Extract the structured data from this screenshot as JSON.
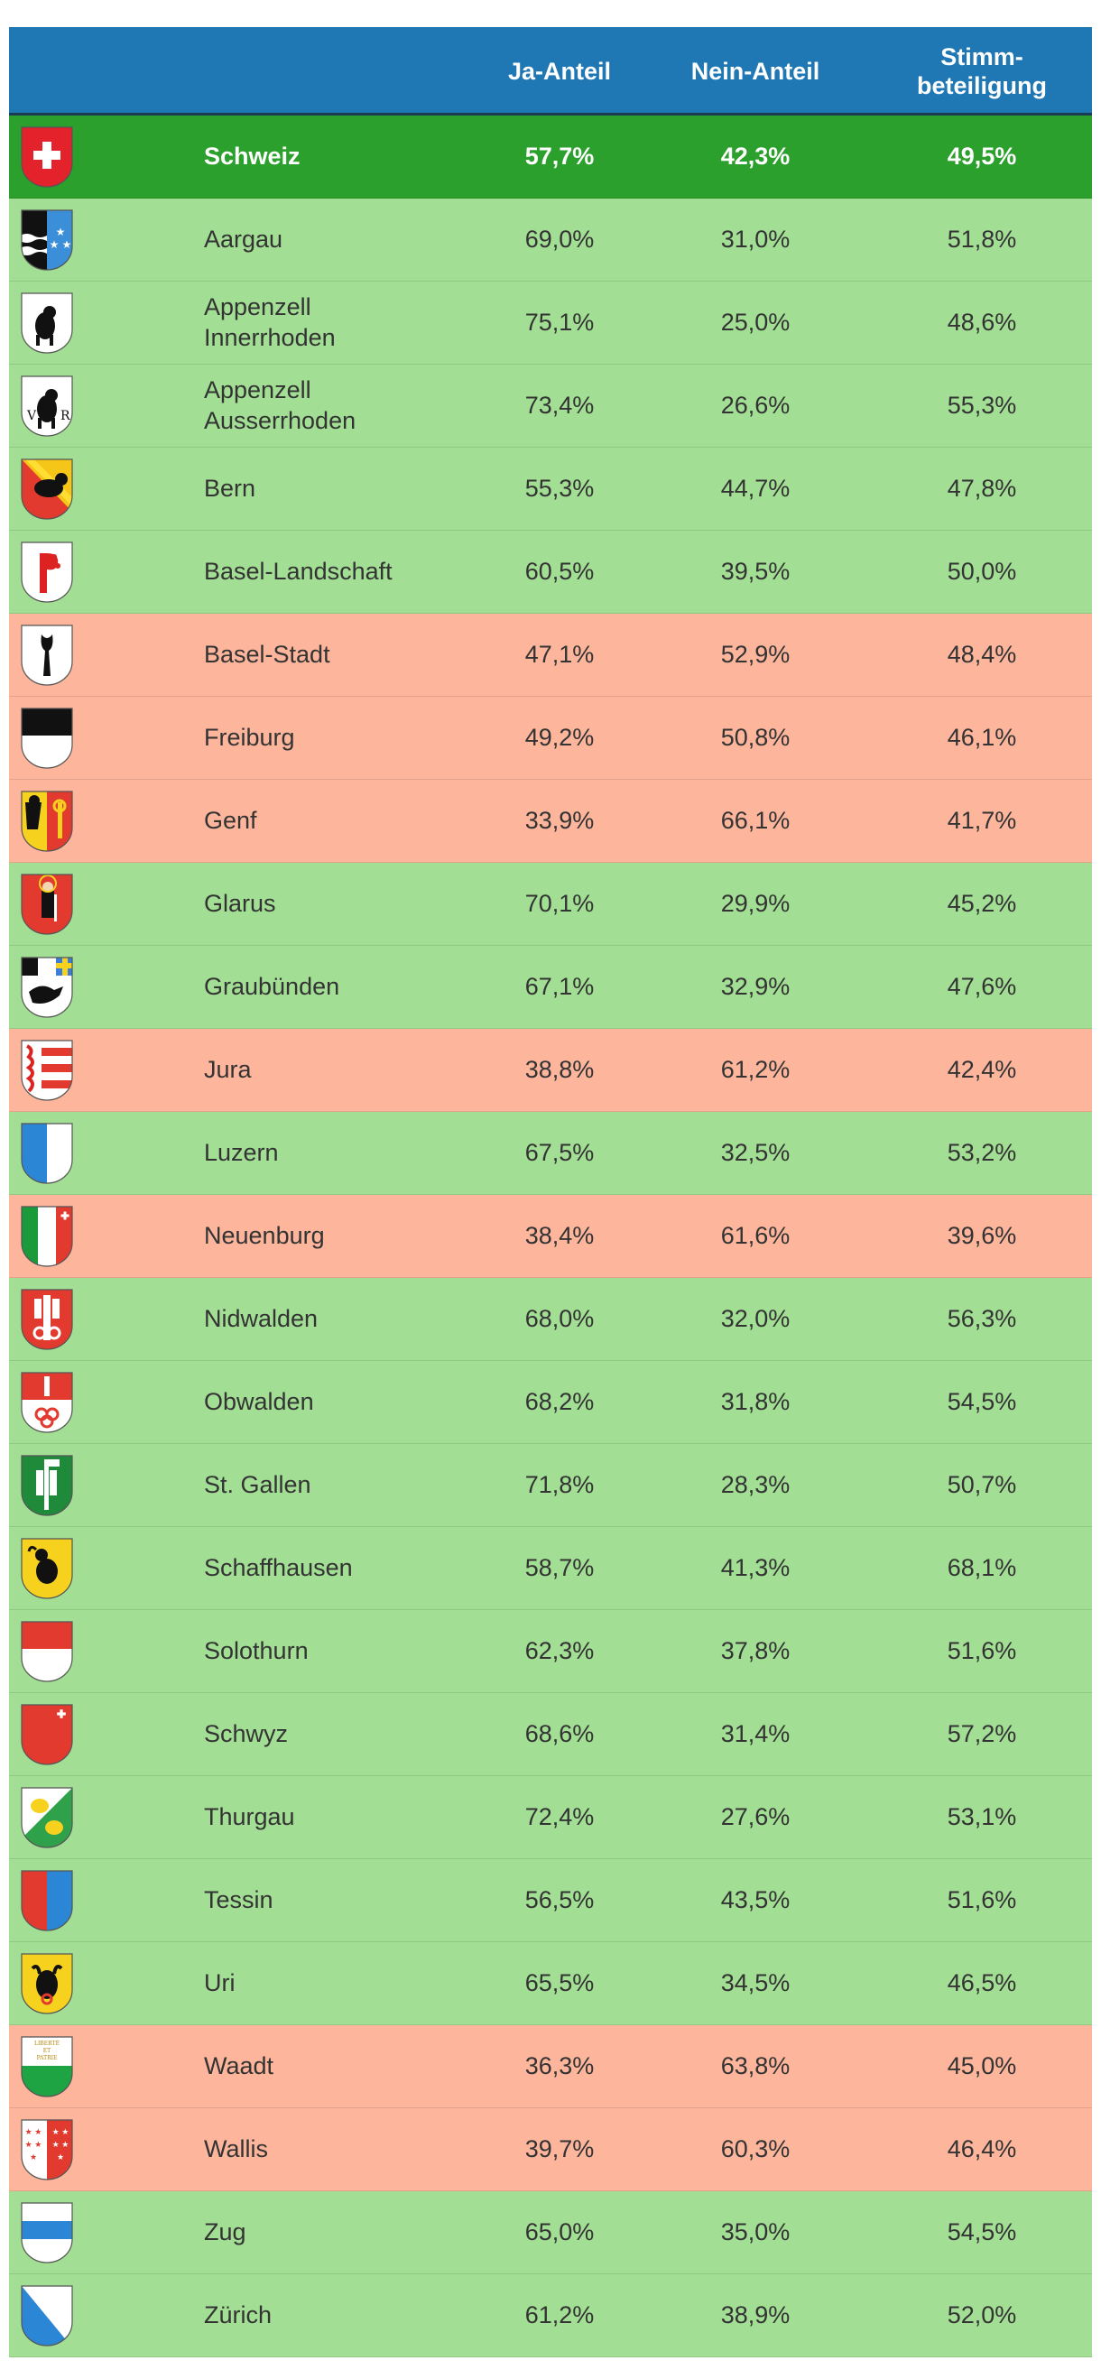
{
  "header": {
    "ja": "Ja-Anteil",
    "nein": "Nein-Anteil",
    "stimm": "Stimm-\nbeteiligung"
  },
  "colors": {
    "header": "#1f77b4",
    "total": "#2ca02c",
    "yes": "#a2df94",
    "no": "#fdb59c"
  },
  "rows": [
    {
      "name": "Schweiz",
      "ja": "57,7%",
      "nein": "42,3%",
      "stimm": "49,5%",
      "result": "total",
      "icon": "swiss-cross-icon"
    },
    {
      "name": "Aargau",
      "ja": "69,0%",
      "nein": "31,0%",
      "stimm": "51,8%",
      "result": "yes",
      "icon": "aargau-coat-of-arms-icon"
    },
    {
      "name": "Appenzell\nInnerrhoden",
      "ja": "75,1%",
      "nein": "25,0%",
      "stimm": "48,6%",
      "result": "yes",
      "icon": "appenzell-innerrhoden-coat-of-arms-icon"
    },
    {
      "name": "Appenzell\nAusserrhoden",
      "ja": "73,4%",
      "nein": "26,6%",
      "stimm": "55,3%",
      "result": "yes",
      "icon": "appenzell-ausserrhoden-coat-of-arms-icon"
    },
    {
      "name": "Bern",
      "ja": "55,3%",
      "nein": "44,7%",
      "stimm": "47,8%",
      "result": "yes",
      "icon": "bern-coat-of-arms-icon"
    },
    {
      "name": "Basel-Landschaft",
      "ja": "60,5%",
      "nein": "39,5%",
      "stimm": "50,0%",
      "result": "yes",
      "icon": "basel-landschaft-coat-of-arms-icon"
    },
    {
      "name": "Basel-Stadt",
      "ja": "47,1%",
      "nein": "52,9%",
      "stimm": "48,4%",
      "result": "no",
      "icon": "basel-stadt-coat-of-arms-icon"
    },
    {
      "name": "Freiburg",
      "ja": "49,2%",
      "nein": "50,8%",
      "stimm": "46,1%",
      "result": "no",
      "icon": "freiburg-coat-of-arms-icon"
    },
    {
      "name": "Genf",
      "ja": "33,9%",
      "nein": "66,1%",
      "stimm": "41,7%",
      "result": "no",
      "icon": "genf-coat-of-arms-icon"
    },
    {
      "name": "Glarus",
      "ja": "70,1%",
      "nein": "29,9%",
      "stimm": "45,2%",
      "result": "yes",
      "icon": "glarus-coat-of-arms-icon"
    },
    {
      "name": "Graubünden",
      "ja": "67,1%",
      "nein": "32,9%",
      "stimm": "47,6%",
      "result": "yes",
      "icon": "graubuenden-coat-of-arms-icon"
    },
    {
      "name": "Jura",
      "ja": "38,8%",
      "nein": "61,2%",
      "stimm": "42,4%",
      "result": "no",
      "icon": "jura-coat-of-arms-icon"
    },
    {
      "name": "Luzern",
      "ja": "67,5%",
      "nein": "32,5%",
      "stimm": "53,2%",
      "result": "yes",
      "icon": "luzern-coat-of-arms-icon"
    },
    {
      "name": "Neuenburg",
      "ja": "38,4%",
      "nein": "61,6%",
      "stimm": "39,6%",
      "result": "no",
      "icon": "neuenburg-coat-of-arms-icon"
    },
    {
      "name": "Nidwalden",
      "ja": "68,0%",
      "nein": "32,0%",
      "stimm": "56,3%",
      "result": "yes",
      "icon": "nidwalden-coat-of-arms-icon"
    },
    {
      "name": "Obwalden",
      "ja": "68,2%",
      "nein": "31,8%",
      "stimm": "54,5%",
      "result": "yes",
      "icon": "obwalden-coat-of-arms-icon"
    },
    {
      "name": "St. Gallen",
      "ja": "71,8%",
      "nein": "28,3%",
      "stimm": "50,7%",
      "result": "yes",
      "icon": "st-gallen-coat-of-arms-icon"
    },
    {
      "name": "Schaffhausen",
      "ja": "58,7%",
      "nein": "41,3%",
      "stimm": "68,1%",
      "result": "yes",
      "icon": "schaffhausen-coat-of-arms-icon"
    },
    {
      "name": "Solothurn",
      "ja": "62,3%",
      "nein": "37,8%",
      "stimm": "51,6%",
      "result": "yes",
      "icon": "solothurn-coat-of-arms-icon"
    },
    {
      "name": "Schwyz",
      "ja": "68,6%",
      "nein": "31,4%",
      "stimm": "57,2%",
      "result": "yes",
      "icon": "schwyz-coat-of-arms-icon"
    },
    {
      "name": "Thurgau",
      "ja": "72,4%",
      "nein": "27,6%",
      "stimm": "53,1%",
      "result": "yes",
      "icon": "thurgau-coat-of-arms-icon"
    },
    {
      "name": "Tessin",
      "ja": "56,5%",
      "nein": "43,5%",
      "stimm": "51,6%",
      "result": "yes",
      "icon": "tessin-coat-of-arms-icon"
    },
    {
      "name": "Uri",
      "ja": "65,5%",
      "nein": "34,5%",
      "stimm": "46,5%",
      "result": "yes",
      "icon": "uri-coat-of-arms-icon"
    },
    {
      "name": "Waadt",
      "ja": "36,3%",
      "nein": "63,8%",
      "stimm": "45,0%",
      "result": "no",
      "icon": "waadt-coat-of-arms-icon"
    },
    {
      "name": "Wallis",
      "ja": "39,7%",
      "nein": "60,3%",
      "stimm": "46,4%",
      "result": "no",
      "icon": "wallis-coat-of-arms-icon"
    },
    {
      "name": "Zug",
      "ja": "65,0%",
      "nein": "35,0%",
      "stimm": "54,5%",
      "result": "yes",
      "icon": "zug-coat-of-arms-icon"
    },
    {
      "name": "Zürich",
      "ja": "61,2%",
      "nein": "38,9%",
      "stimm": "52,0%",
      "result": "yes",
      "icon": "zuerich-coat-of-arms-icon"
    }
  ]
}
